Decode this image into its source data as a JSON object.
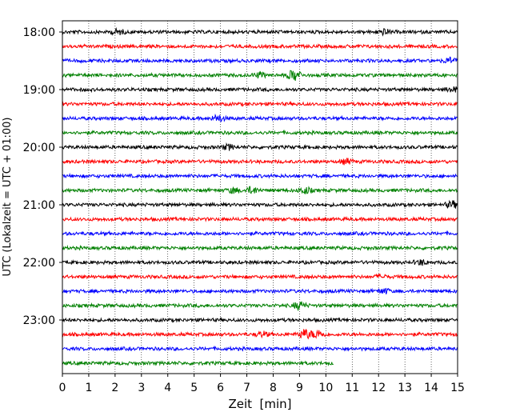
{
  "chart_data": {
    "type": "line",
    "xlabel": "Zeit  [min]",
    "ylabel": "UTC (Lokalzeit = UTC + 01:00)",
    "xlim": [
      0,
      15
    ],
    "x_ticks": [
      "0",
      "1",
      "2",
      "3",
      "4",
      "5",
      "6",
      "7",
      "8",
      "9",
      "10",
      "11",
      "12",
      "13",
      "14",
      "15"
    ],
    "y_ticks": [
      "18:00",
      "19:00",
      "20:00",
      "21:00",
      "22:00",
      "23:00"
    ],
    "grid": "vertical dotted",
    "trace_interval_min": 15,
    "colors": [
      "#000000",
      "#ff0000",
      "#0000ff",
      "#008000"
    ],
    "traces": [
      {
        "start": "18:00",
        "color": "#000000",
        "end_min": 15,
        "events": [
          {
            "t": 2.1,
            "amp": 3
          },
          {
            "t": 12.2,
            "amp": 3
          }
        ]
      },
      {
        "start": "18:15",
        "color": "#ff0000",
        "end_min": 15,
        "events": []
      },
      {
        "start": "18:30",
        "color": "#0000ff",
        "end_min": 15,
        "events": [
          {
            "t": 14.7,
            "amp": 3
          }
        ]
      },
      {
        "start": "18:45",
        "color": "#008000",
        "end_min": 15,
        "events": [
          {
            "t": 7.5,
            "amp": 3
          },
          {
            "t": 8.8,
            "amp": 7
          }
        ]
      },
      {
        "start": "19:00",
        "color": "#000000",
        "end_min": 15,
        "events": [
          {
            "t": 14.8,
            "amp": 3
          }
        ]
      },
      {
        "start": "19:15",
        "color": "#ff0000",
        "end_min": 15,
        "events": []
      },
      {
        "start": "19:30",
        "color": "#0000ff",
        "end_min": 15,
        "events": [
          {
            "t": 5.9,
            "amp": 4
          }
        ]
      },
      {
        "start": "19:45",
        "color": "#008000",
        "end_min": 15,
        "events": []
      },
      {
        "start": "20:00",
        "color": "#000000",
        "end_min": 15,
        "events": [
          {
            "t": 6.3,
            "amp": 3
          }
        ]
      },
      {
        "start": "20:15",
        "color": "#ff0000",
        "end_min": 15,
        "events": [
          {
            "t": 10.8,
            "amp": 3
          }
        ]
      },
      {
        "start": "20:30",
        "color": "#0000ff",
        "end_min": 15,
        "events": []
      },
      {
        "start": "20:45",
        "color": "#008000",
        "end_min": 15,
        "events": [
          {
            "t": 6.5,
            "amp": 3
          },
          {
            "t": 7.2,
            "amp": 4
          },
          {
            "t": 9.2,
            "amp": 4
          }
        ]
      },
      {
        "start": "21:00",
        "color": "#000000",
        "end_min": 15,
        "events": [
          {
            "t": 14.8,
            "amp": 4
          }
        ]
      },
      {
        "start": "21:15",
        "color": "#ff0000",
        "end_min": 15,
        "events": []
      },
      {
        "start": "21:30",
        "color": "#0000ff",
        "end_min": 15,
        "events": []
      },
      {
        "start": "21:45",
        "color": "#008000",
        "end_min": 15,
        "events": []
      },
      {
        "start": "22:00",
        "color": "#000000",
        "end_min": 15,
        "events": [
          {
            "t": 13.6,
            "amp": 3
          }
        ]
      },
      {
        "start": "22:15",
        "color": "#ff0000",
        "end_min": 15,
        "events": [
          {
            "t": 12.1,
            "amp": 2
          }
        ]
      },
      {
        "start": "22:30",
        "color": "#0000ff",
        "end_min": 15,
        "events": [
          {
            "t": 12.2,
            "amp": 3
          }
        ]
      },
      {
        "start": "22:45",
        "color": "#008000",
        "end_min": 15,
        "events": [
          {
            "t": 9.0,
            "amp": 5
          }
        ]
      },
      {
        "start": "23:00",
        "color": "#000000",
        "end_min": 15,
        "events": []
      },
      {
        "start": "23:15",
        "color": "#ff0000",
        "end_min": 15,
        "events": [
          {
            "t": 7.6,
            "amp": 3
          },
          {
            "t": 9.2,
            "amp": 6
          },
          {
            "t": 9.7,
            "amp": 5
          }
        ]
      },
      {
        "start": "23:30",
        "color": "#0000ff",
        "end_min": 15,
        "events": []
      },
      {
        "start": "23:45",
        "color": "#008000",
        "end_min": 10.3,
        "events": []
      }
    ]
  }
}
